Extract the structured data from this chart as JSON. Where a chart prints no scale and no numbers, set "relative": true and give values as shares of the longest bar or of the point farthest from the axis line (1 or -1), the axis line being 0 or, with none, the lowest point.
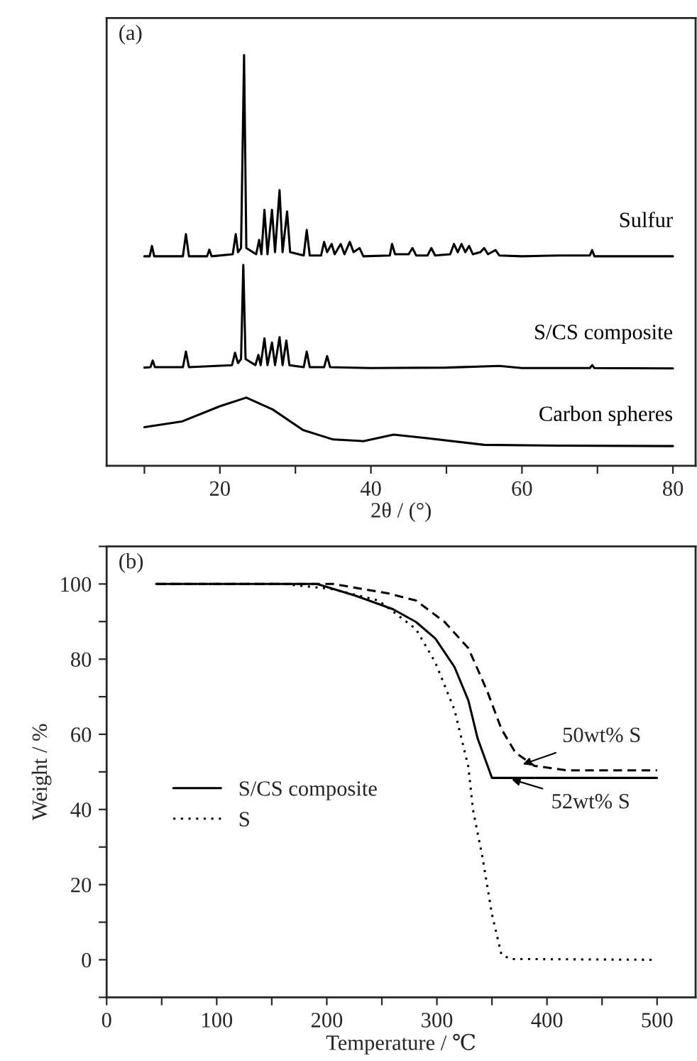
{
  "chart_data": [
    {
      "type": "line",
      "title": "(a)",
      "xlabel": "2θ / (°)",
      "relative": true,
      "legend": false,
      "grid": false,
      "tick_labels": "x",
      "xlim": [
        5,
        83
      ],
      "xticks": [
        {
          "value": 10,
          "label": null
        },
        20,
        {
          "value": 30,
          "label": null
        },
        40,
        {
          "value": 50,
          "label": null
        },
        60,
        {
          "value": 70,
          "label": null
        },
        80
      ],
      "series": [
        {
          "name": "Sulfur",
          "color": "#000000",
          "line_style": "solid",
          "x": [
            10,
            10.7,
            11.0,
            11.3,
            15.1,
            15.5,
            15.9,
            18.3,
            18.6,
            18.9,
            21.7,
            22.1,
            22.4,
            22.8,
            23.2,
            23.5,
            24.8,
            25.2,
            25.5,
            25.9,
            26.3,
            26.9,
            27.3,
            27.9,
            28.3,
            28.9,
            29.3,
            31.1,
            31.5,
            31.9,
            33.4,
            33.8,
            34.2,
            34.8,
            35.2,
            36.0,
            36.5,
            37.2,
            37.7,
            38.5,
            39,
            42.5,
            42.8,
            43.2,
            45,
            45.5,
            46,
            47.5,
            48,
            48.5,
            50.5,
            51,
            51.5,
            52,
            52.5,
            53,
            53.5,
            54.5,
            55,
            55.5,
            56.5,
            57,
            60,
            65,
            69,
            69.3,
            69.6,
            75,
            80
          ],
          "values": [
            0.51,
            0.51,
            0.535,
            0.51,
            0.51,
            0.564,
            0.51,
            0.51,
            0.526,
            0.51,
            0.515,
            0.564,
            0.52,
            0.53,
            1.0,
            0.53,
            0.515,
            0.55,
            0.515,
            0.623,
            0.515,
            0.623,
            0.52,
            0.671,
            0.52,
            0.619,
            0.52,
            0.512,
            0.574,
            0.512,
            0.512,
            0.545,
            0.52,
            0.54,
            0.515,
            0.54,
            0.515,
            0.545,
            0.52,
            0.53,
            0.51,
            0.512,
            0.54,
            0.515,
            0.515,
            0.53,
            0.512,
            0.512,
            0.53,
            0.512,
            0.515,
            0.54,
            0.52,
            0.54,
            0.52,
            0.535,
            0.515,
            0.52,
            0.53,
            0.515,
            0.525,
            0.512,
            0.51,
            0.512,
            0.512,
            0.525,
            0.51,
            0.51,
            0.51
          ]
        },
        {
          "name": "S/CS composite",
          "color": "#000000",
          "line_style": "solid",
          "x": [
            10,
            10.8,
            11.1,
            11.4,
            15.1,
            15.5,
            15.9,
            21.6,
            22,
            22.4,
            22.8,
            23.1,
            23.4,
            24.7,
            25.1,
            25.4,
            25.9,
            26.3,
            26.9,
            27.3,
            27.9,
            28.3,
            28.8,
            29.2,
            31.1,
            31.5,
            31.9,
            33.8,
            34.2,
            34.6,
            40,
            50,
            57,
            60,
            69,
            69.3,
            69.6,
            80
          ],
          "values": [
            0.239,
            0.24,
            0.256,
            0.24,
            0.24,
            0.278,
            0.24,
            0.245,
            0.275,
            0.25,
            0.26,
            0.489,
            0.26,
            0.245,
            0.27,
            0.245,
            0.31,
            0.245,
            0.3,
            0.245,
            0.313,
            0.245,
            0.305,
            0.245,
            0.24,
            0.278,
            0.24,
            0.24,
            0.267,
            0.24,
            0.238,
            0.239,
            0.243,
            0.238,
            0.238,
            0.245,
            0.238,
            0.237
          ]
        },
        {
          "name": "Carbon spheres",
          "color": "#000000",
          "line_style": "solid",
          "x": [
            10,
            15,
            20,
            23.5,
            27,
            31,
            35,
            39,
            43,
            47,
            55,
            65,
            80
          ],
          "values": [
            0.094,
            0.108,
            0.145,
            0.166,
            0.137,
            0.087,
            0.064,
            0.06,
            0.076,
            0.068,
            0.051,
            0.049,
            0.048
          ]
        }
      ]
    },
    {
      "type": "line",
      "title": "(b)",
      "xlabel": "Temperature / ℃",
      "ylabel": "Weight / %",
      "legend": "center left",
      "grid": false,
      "xlim": [
        0,
        535
      ],
      "xticks": [
        0,
        {
          "value": 50,
          "label": null
        },
        100,
        {
          "value": 150,
          "label": null
        },
        200,
        {
          "value": 250,
          "label": null
        },
        300,
        {
          "value": 350,
          "label": null
        },
        400,
        {
          "value": 450,
          "label": null
        },
        500
      ],
      "ylim": [
        -10,
        110
      ],
      "yticks": [
        {
          "value": -10,
          "label": null
        },
        0,
        {
          "value": 10,
          "label": null
        },
        20,
        {
          "value": 30,
          "label": null
        },
        40,
        {
          "value": 50,
          "label": null
        },
        60,
        {
          "value": 70,
          "label": null
        },
        80,
        {
          "value": 90,
          "label": null
        },
        100,
        {
          "value": 110,
          "label": null
        }
      ],
      "annotations": [
        {
          "text": "50wt% S",
          "x": 378,
          "y": 52
        },
        {
          "text": "52wt% S",
          "x": 368,
          "y": 48
        }
      ],
      "series": [
        {
          "name": "S/CS composite",
          "color": "#000000",
          "line_style": "solid",
          "x": [
            45,
            191,
            226,
            260,
            281,
            298.6,
            316,
            328.6,
            337,
            350,
            500
          ],
          "values": [
            100,
            100,
            96.9,
            93.3,
            89.9,
            85.5,
            77.9,
            69.0,
            58.9,
            48.4,
            48.4
          ]
        },
        {
          "color": "#000000",
          "line_style": "dashed",
          "x": [
            45,
            206,
            255.6,
            281,
            307,
            328.6,
            345.7,
            358.6,
            371.4,
            388.6,
            418.7,
            500
          ],
          "values": [
            100,
            100,
            97.5,
            95.6,
            89.9,
            82.9,
            71.5,
            61.4,
            55.1,
            51.6,
            50.4,
            50.4
          ]
        },
        {
          "name": "S",
          "color": "#000000",
          "line_style": "dotted",
          "x": [
            45,
            161,
            204,
            247,
            281,
            298.6,
            316,
            328.6,
            332.8,
            341.4,
            350,
            358.6,
            367,
            495
          ],
          "values": [
            100,
            100,
            98.7,
            95.6,
            88,
            79.1,
            66.5,
            51.3,
            39.9,
            27.3,
            12.1,
            1.4,
            0.2,
            0
          ]
        }
      ]
    }
  ]
}
